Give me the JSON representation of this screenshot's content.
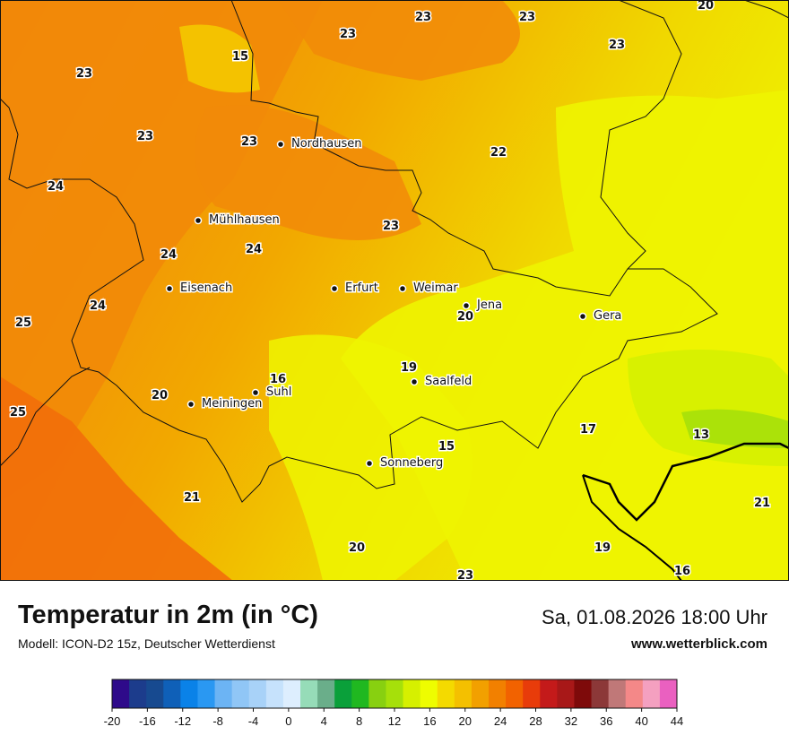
{
  "map": {
    "temperature_labels": [
      {
        "text": "23"
      },
      {
        "text": "23"
      },
      {
        "text": "23"
      },
      {
        "text": "23"
      },
      {
        "text": "15"
      },
      {
        "text": "23"
      },
      {
        "text": "23"
      },
      {
        "text": "23"
      },
      {
        "text": "22"
      },
      {
        "text": "24"
      },
      {
        "text": "23"
      },
      {
        "text": "24"
      },
      {
        "text": "24"
      },
      {
        "text": "24"
      },
      {
        "text": "25"
      },
      {
        "text": "20"
      },
      {
        "text": "19"
      },
      {
        "text": "16"
      },
      {
        "text": "20"
      },
      {
        "text": "25"
      },
      {
        "text": "17"
      },
      {
        "text": "13"
      },
      {
        "text": "15"
      },
      {
        "text": "21"
      },
      {
        "text": "21"
      },
      {
        "text": "20"
      },
      {
        "text": "19"
      },
      {
        "text": "23"
      },
      {
        "text": "16"
      },
      {
        "text": "20"
      }
    ],
    "cities": [
      {
        "name": "Nordhausen"
      },
      {
        "name": "Mühlhausen"
      },
      {
        "name": "Eisenach"
      },
      {
        "name": "Erfurt"
      },
      {
        "name": "Weimar"
      },
      {
        "name": "Jena"
      },
      {
        "name": "Gera"
      },
      {
        "name": "Saalfeld"
      },
      {
        "name": "Suhl"
      },
      {
        "name": "Meiningen"
      },
      {
        "name": "Sonneberg"
      }
    ]
  },
  "footer": {
    "title": "Temperatur in 2m (in °C)",
    "subtitle": "Modell: ICON-D2 15z, Deutscher Wetterdienst",
    "datetime": "Sa, 01.08.2026 18:00 Uhr",
    "website": "www.wetterblick.com"
  },
  "legend": {
    "colors": [
      "#2e0a8a",
      "#1c3c8c",
      "#174a90",
      "#0f60b8",
      "#0a82e8",
      "#2a98f2",
      "#6cb4f4",
      "#90c6f6",
      "#a8d2f8",
      "#c6e2fc",
      "#ddeefe",
      "#96dcb8",
      "#6aae8a",
      "#0aa03a",
      "#20b820",
      "#88d010",
      "#a6e00a",
      "#d6f000",
      "#eefd00",
      "#f4da00",
      "#f4c000",
      "#f2a000",
      "#f28000",
      "#f26200",
      "#e83c0a",
      "#c41a1a",
      "#a81818",
      "#7e0a0a",
      "#8c3838",
      "#c07878",
      "#f48888",
      "#f4a0c0",
      "#ea60c0"
    ],
    "ticks": [
      "-20",
      "-16",
      "-12",
      "-8",
      "-4",
      "0",
      "4",
      "8",
      "12",
      "16",
      "20",
      "24",
      "28",
      "32",
      "36",
      "40",
      "44"
    ]
  }
}
